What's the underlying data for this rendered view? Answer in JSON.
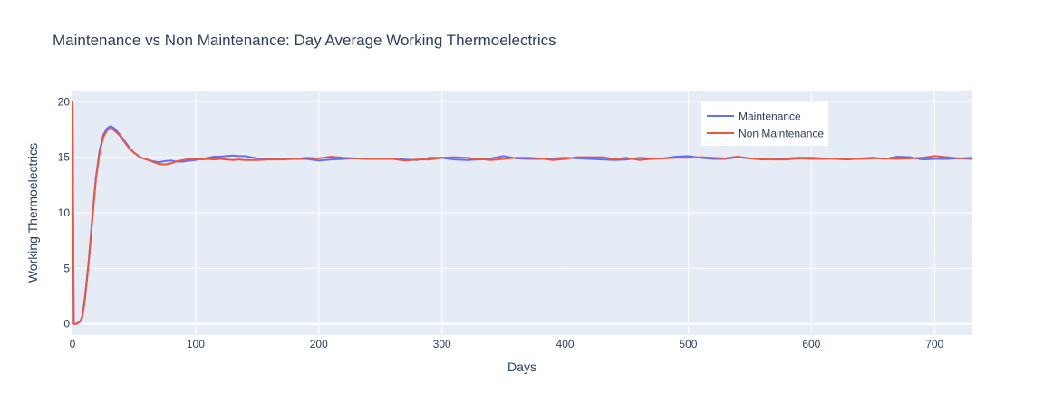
{
  "chart_data": {
    "type": "line",
    "title": "Maintenance vs Non Maintenance: Day Average Working Thermoelectrics",
    "xlabel": "Days",
    "ylabel": "Working Thermoelectrics",
    "xlim": [
      0,
      730
    ],
    "ylim": [
      -1,
      21
    ],
    "xticks": [
      0,
      100,
      200,
      300,
      400,
      500,
      600,
      700
    ],
    "yticks": [
      0,
      5,
      10,
      15,
      20
    ],
    "grid": true,
    "legend_position": "top-right",
    "colors": {
      "plot_bg": "#E5ECF6",
      "grid": "#FFFFFF",
      "text": "#2A3F5F"
    },
    "series": [
      {
        "name": "Maintenance",
        "color": "#636EFA",
        "points": [
          [
            0,
            20
          ],
          [
            1,
            0
          ],
          [
            3,
            0
          ],
          [
            6,
            0.2
          ],
          [
            8,
            0.7
          ],
          [
            10,
            2.3
          ],
          [
            13,
            5.5
          ],
          [
            16,
            9.5
          ],
          [
            19,
            13.2
          ],
          [
            22,
            15.6
          ],
          [
            25,
            17.0
          ],
          [
            28,
            17.6
          ],
          [
            31,
            17.8
          ],
          [
            34,
            17.6
          ],
          [
            38,
            17.1
          ],
          [
            42,
            16.5
          ],
          [
            46,
            15.9
          ],
          [
            50,
            15.4
          ],
          [
            55,
            15.0
          ],
          [
            60,
            14.8
          ],
          [
            65,
            14.65
          ],
          [
            70,
            14.55
          ],
          [
            75,
            14.65
          ],
          [
            80,
            14.7
          ],
          [
            85,
            14.6
          ],
          [
            90,
            14.6
          ],
          [
            95,
            14.7
          ],
          [
            100,
            14.75
          ],
          [
            105,
            14.85
          ],
          [
            110,
            14.95
          ],
          [
            115,
            15.05
          ],
          [
            120,
            15.05
          ],
          [
            125,
            15.1
          ],
          [
            130,
            15.15
          ],
          [
            135,
            15.1
          ],
          [
            140,
            15.1
          ],
          [
            145,
            15.0
          ],
          [
            150,
            14.9
          ],
          [
            160,
            14.85
          ],
          [
            170,
            14.85
          ],
          [
            180,
            14.85
          ],
          [
            190,
            14.85
          ],
          [
            200,
            14.7
          ],
          [
            210,
            14.8
          ],
          [
            220,
            14.85
          ],
          [
            230,
            14.9
          ],
          [
            240,
            14.85
          ],
          [
            250,
            14.85
          ],
          [
            260,
            14.9
          ],
          [
            270,
            14.8
          ],
          [
            280,
            14.75
          ],
          [
            290,
            14.95
          ],
          [
            300,
            14.95
          ],
          [
            310,
            14.8
          ],
          [
            320,
            14.75
          ],
          [
            330,
            14.8
          ],
          [
            340,
            14.9
          ],
          [
            350,
            15.1
          ],
          [
            360,
            14.9
          ],
          [
            370,
            14.85
          ],
          [
            380,
            14.85
          ],
          [
            390,
            14.9
          ],
          [
            400,
            14.95
          ],
          [
            410,
            14.9
          ],
          [
            420,
            14.85
          ],
          [
            430,
            14.8
          ],
          [
            440,
            14.75
          ],
          [
            450,
            14.8
          ],
          [
            460,
            14.95
          ],
          [
            470,
            14.9
          ],
          [
            480,
            14.9
          ],
          [
            490,
            15.05
          ],
          [
            500,
            15.1
          ],
          [
            510,
            14.95
          ],
          [
            520,
            14.85
          ],
          [
            530,
            14.85
          ],
          [
            540,
            15.0
          ],
          [
            550,
            14.9
          ],
          [
            560,
            14.8
          ],
          [
            570,
            14.85
          ],
          [
            580,
            14.9
          ],
          [
            590,
            14.95
          ],
          [
            600,
            14.95
          ],
          [
            610,
            14.9
          ],
          [
            620,
            14.85
          ],
          [
            630,
            14.8
          ],
          [
            640,
            14.9
          ],
          [
            650,
            14.95
          ],
          [
            660,
            14.85
          ],
          [
            670,
            15.05
          ],
          [
            680,
            15.0
          ],
          [
            690,
            14.8
          ],
          [
            700,
            14.85
          ],
          [
            710,
            14.85
          ],
          [
            720,
            14.9
          ],
          [
            730,
            14.85
          ]
        ]
      },
      {
        "name": "Non Maintenance",
        "color": "#EF553B",
        "points": [
          [
            0,
            20
          ],
          [
            1,
            0
          ],
          [
            3,
            0
          ],
          [
            6,
            0.2
          ],
          [
            8,
            0.6
          ],
          [
            10,
            2.1
          ],
          [
            13,
            5.3
          ],
          [
            16,
            9.3
          ],
          [
            19,
            13.0
          ],
          [
            22,
            15.4
          ],
          [
            25,
            16.8
          ],
          [
            28,
            17.4
          ],
          [
            31,
            17.6
          ],
          [
            34,
            17.4
          ],
          [
            38,
            17.0
          ],
          [
            42,
            16.4
          ],
          [
            46,
            15.8
          ],
          [
            50,
            15.4
          ],
          [
            55,
            15.0
          ],
          [
            60,
            14.8
          ],
          [
            65,
            14.6
          ],
          [
            70,
            14.4
          ],
          [
            75,
            14.35
          ],
          [
            80,
            14.45
          ],
          [
            85,
            14.65
          ],
          [
            90,
            14.75
          ],
          [
            95,
            14.85
          ],
          [
            100,
            14.85
          ],
          [
            105,
            14.8
          ],
          [
            110,
            14.85
          ],
          [
            115,
            14.8
          ],
          [
            120,
            14.85
          ],
          [
            125,
            14.8
          ],
          [
            130,
            14.75
          ],
          [
            135,
            14.8
          ],
          [
            140,
            14.75
          ],
          [
            150,
            14.75
          ],
          [
            160,
            14.8
          ],
          [
            170,
            14.8
          ],
          [
            180,
            14.85
          ],
          [
            190,
            14.95
          ],
          [
            200,
            14.9
          ],
          [
            210,
            15.05
          ],
          [
            220,
            14.95
          ],
          [
            230,
            14.9
          ],
          [
            240,
            14.85
          ],
          [
            250,
            14.85
          ],
          [
            260,
            14.85
          ],
          [
            270,
            14.7
          ],
          [
            280,
            14.8
          ],
          [
            290,
            14.8
          ],
          [
            300,
            14.95
          ],
          [
            310,
            15.0
          ],
          [
            320,
            14.95
          ],
          [
            330,
            14.85
          ],
          [
            340,
            14.75
          ],
          [
            350,
            14.85
          ],
          [
            360,
            14.95
          ],
          [
            370,
            14.95
          ],
          [
            380,
            14.9
          ],
          [
            390,
            14.75
          ],
          [
            400,
            14.85
          ],
          [
            410,
            15.0
          ],
          [
            420,
            15.0
          ],
          [
            430,
            15.0
          ],
          [
            440,
            14.85
          ],
          [
            450,
            14.95
          ],
          [
            460,
            14.75
          ],
          [
            470,
            14.85
          ],
          [
            480,
            14.9
          ],
          [
            490,
            14.95
          ],
          [
            500,
            14.95
          ],
          [
            510,
            15.0
          ],
          [
            520,
            14.95
          ],
          [
            530,
            14.9
          ],
          [
            540,
            15.05
          ],
          [
            550,
            14.9
          ],
          [
            560,
            14.85
          ],
          [
            570,
            14.8
          ],
          [
            580,
            14.8
          ],
          [
            590,
            14.9
          ],
          [
            600,
            14.85
          ],
          [
            610,
            14.85
          ],
          [
            620,
            14.9
          ],
          [
            630,
            14.85
          ],
          [
            640,
            14.85
          ],
          [
            650,
            14.9
          ],
          [
            660,
            14.9
          ],
          [
            670,
            14.85
          ],
          [
            680,
            14.9
          ],
          [
            690,
            14.95
          ],
          [
            700,
            15.1
          ],
          [
            710,
            15.0
          ],
          [
            720,
            14.9
          ],
          [
            730,
            14.95
          ]
        ]
      }
    ]
  }
}
